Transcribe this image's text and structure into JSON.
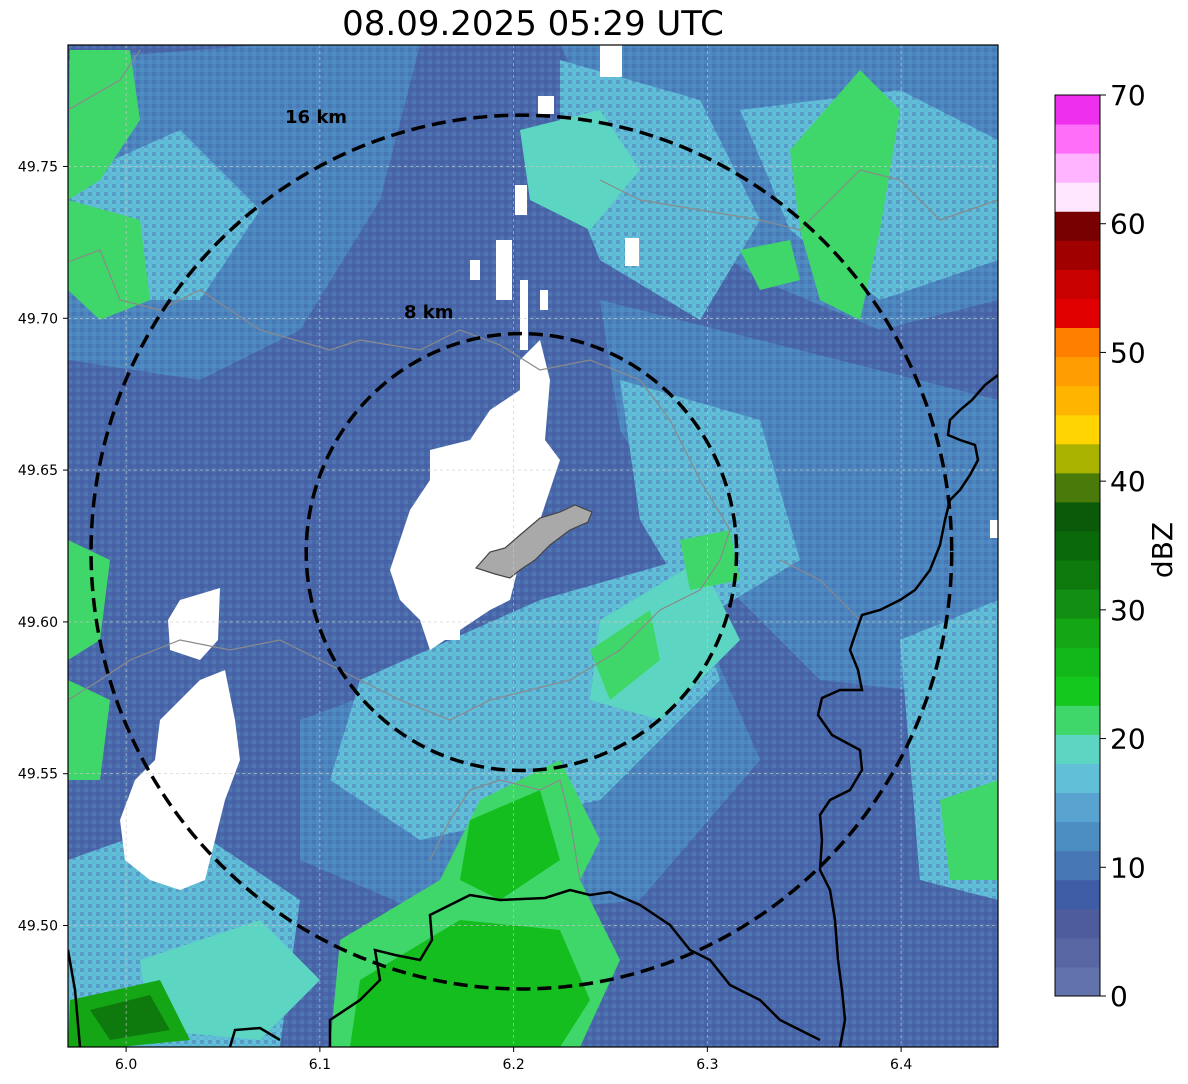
{
  "title": "08.09.2025 05:29 UTC",
  "map": {
    "lon_range": [
      5.97,
      6.45
    ],
    "lat_range": [
      49.46,
      49.79
    ],
    "x_ticks": [
      6.0,
      6.1,
      6.2,
      6.3,
      6.4
    ],
    "x_tick_labels": [
      "6.0",
      "6.1",
      "6.2",
      "6.3",
      "6.4"
    ],
    "y_ticks": [
      49.5,
      49.55,
      49.6,
      49.65,
      49.7,
      49.75
    ],
    "y_tick_labels": [
      "49.50",
      "49.55",
      "49.60",
      "49.65",
      "49.70",
      "49.75"
    ],
    "gridlines": true,
    "radar_center": {
      "lon": 6.204,
      "lat": 49.623
    },
    "rings": [
      {
        "label": "8 km",
        "radius_km": 8
      },
      {
        "label": "16 km",
        "radius_km": 16
      }
    ],
    "colors": {
      "background_low": "#4a5fa2",
      "mid": "#5aa0d0",
      "light": "#64c3dc",
      "green": "#14be1e",
      "no_data": "#ffffff",
      "city": "#a9a9a9"
    }
  },
  "colorbar": {
    "label": "dBZ",
    "min": 0,
    "max": 70,
    "tick_values": [
      0,
      10,
      20,
      30,
      40,
      50,
      60,
      70
    ],
    "tick_labels": [
      "0",
      "10",
      "20",
      "30",
      "40",
      "50",
      "60",
      "70"
    ],
    "colors": [
      "#6272aa",
      "#5866a4",
      "#4e5c9e",
      "#3f5ca6",
      "#4777b4",
      "#4c8ec2",
      "#58a3cf",
      "#62bfd8",
      "#5cd6c2",
      "#40d76a",
      "#14c81e",
      "#12b81a",
      "#14a614",
      "#128e12",
      "#0e7a0e",
      "#0a6a0a",
      "#0a5a0a",
      "#4a7a0a",
      "#aab400",
      "#ffd400",
      "#ffb400",
      "#ff9c00",
      "#ff8000",
      "#e00000",
      "#c80000",
      "#a00000",
      "#780000",
      "#ffe6ff",
      "#ffb4ff",
      "#ff6ef8",
      "#ee30ee"
    ]
  }
}
